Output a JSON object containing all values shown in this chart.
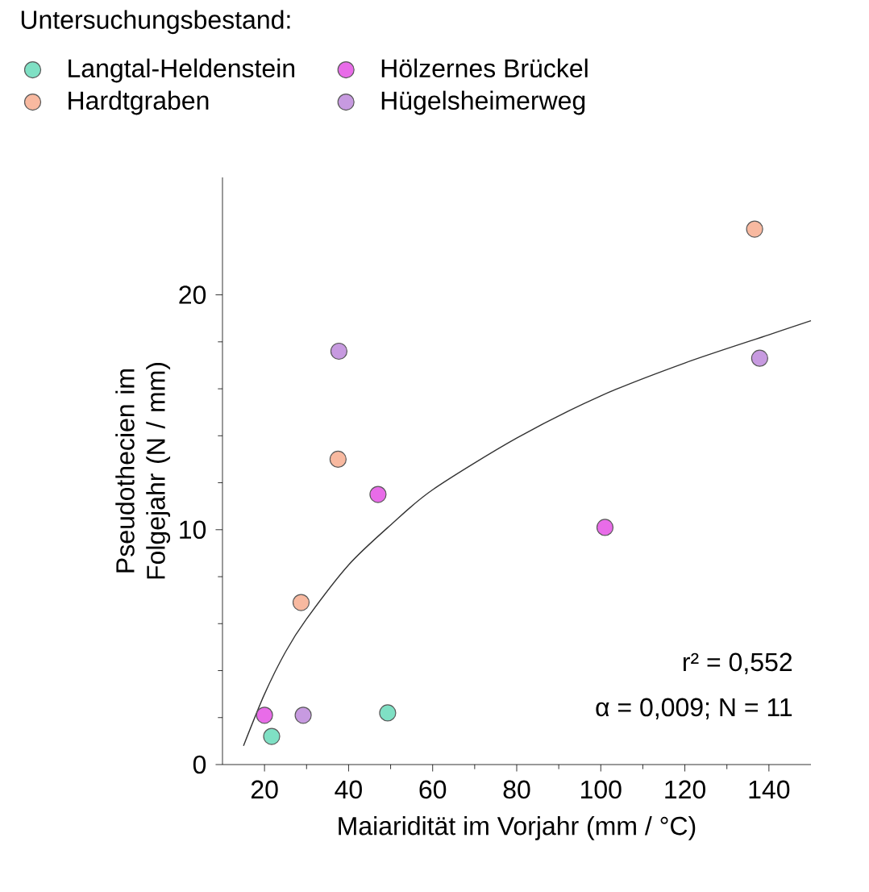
{
  "chart_data": {
    "type": "scatter",
    "xlabel": "Maiaridität im Vorjahr (mm / °C)",
    "ylabel": "Pseudothecien im Folgejahr (N / mm)",
    "legend_title": "Untersuchungsbestand:",
    "legend": "top",
    "marker": "circle",
    "xlim": [
      10,
      150
    ],
    "xticks": [
      20,
      40,
      60,
      80,
      100,
      120,
      140
    ],
    "ylim": [
      0,
      25
    ],
    "yticks": [
      0,
      10,
      20
    ],
    "grid": false,
    "annotations": [
      "r² = 0,552",
      "α = 0,009; N = 11"
    ],
    "series": [
      {
        "name": "Langtal-Heldenstein",
        "color": "#7fe0c4",
        "x": [
          21.7,
          49.3
        ],
        "values": [
          1.2,
          2.2
        ]
      },
      {
        "name": "Hardtgraben",
        "color": "#f8b9a0",
        "x": [
          28.7,
          37.5,
          136.6
        ],
        "values": [
          6.9,
          13.0,
          22.8
        ]
      },
      {
        "name": "Hölzernes Brückel",
        "color": "#e86ce8",
        "x": [
          20,
          47.0,
          101.0
        ],
        "values": [
          2.1,
          11.5,
          10.1
        ]
      },
      {
        "name": "Hügelsheimerweg",
        "color": "#c79ae0",
        "x": [
          29.2,
          37.7,
          137.8
        ],
        "values": [
          2.1,
          17.6,
          17.3
        ]
      },
      {
        "type": "line",
        "color": "#333333",
        "marker": "none",
        "x": [
          15,
          20,
          25,
          30,
          40,
          50,
          60,
          80,
          100,
          120,
          140,
          150
        ],
        "values": [
          0.8,
          3.0,
          4.8,
          6.2,
          8.5,
          10.2,
          11.7,
          13.9,
          15.7,
          17.1,
          18.3,
          18.9
        ]
      }
    ]
  }
}
